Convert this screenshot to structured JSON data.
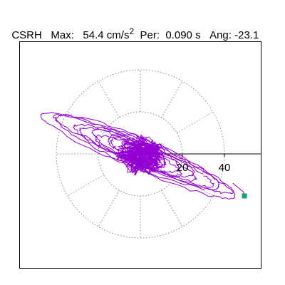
{
  "header": {
    "station": "CSRH",
    "max_label": "Max:",
    "max_value": "54.4",
    "max_unit": "cm/s",
    "max_unit_exp": "2",
    "per_label": "Per:",
    "per_value": "0.090",
    "per_unit": "s",
    "ang_label": "Ang:",
    "ang_value": "-23.1"
  },
  "chart_data": {
    "type": "line",
    "title": "",
    "xlabel": "",
    "ylabel": "",
    "polar_grid": {
      "ring_radii": [
        20,
        40
      ],
      "spoke_step_deg": 30,
      "grid_style": "dotted"
    },
    "axis_tick_labels": [
      "20",
      "40"
    ],
    "xlim": [
      -50,
      60
    ],
    "ylim": [
      -55,
      55
    ],
    "orbit": {
      "max": 54.4,
      "angle_deg": -23.1,
      "end_marker": true
    },
    "colors": {
      "trace": "#9400d3",
      "grid": "#888888",
      "marker": "#1a9e73",
      "axes": "#000000"
    }
  }
}
